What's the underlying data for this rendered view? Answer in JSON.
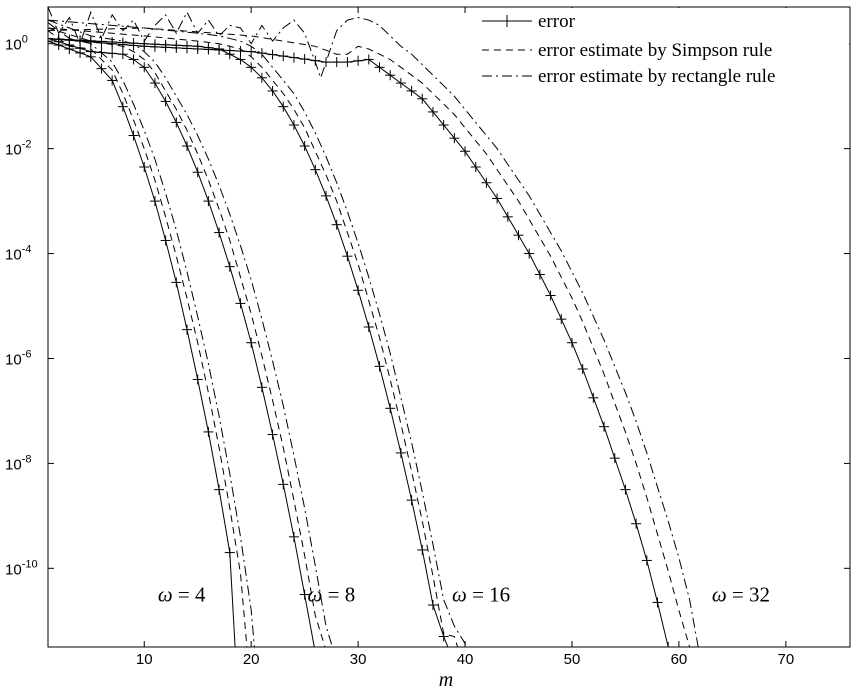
{
  "chart_data": {
    "type": "line",
    "xlabel": "m",
    "ylabel": "",
    "xlim": [
      1,
      76
    ],
    "ylim_log10": [
      -11.5,
      0.7
    ],
    "y_scale": "log",
    "grid": false,
    "legend_position": "top-right",
    "x_ticks": [
      10,
      20,
      30,
      40,
      50,
      60,
      70
    ],
    "x_tick_labels": [
      "10",
      "20",
      "30",
      "40",
      "50",
      "60",
      "70"
    ],
    "y_ticks_log10": [
      0,
      -2,
      -4,
      -6,
      -8,
      -10
    ],
    "y_tick_labels": [
      {
        "base": "10",
        "exp": "0"
      },
      {
        "base": "10",
        "exp": "-2"
      },
      {
        "base": "10",
        "exp": "-4"
      },
      {
        "base": "10",
        "exp": "-6"
      },
      {
        "base": "10",
        "exp": "-8"
      },
      {
        "base": "10",
        "exp": "-10"
      }
    ],
    "legend": [
      {
        "label": "error",
        "style": "solid-plus"
      },
      {
        "label": "error estimate by Simpson rule",
        "style": "dashed"
      },
      {
        "label": "error estimate by rectangle rule",
        "style": "dashdot"
      }
    ],
    "annotations": [
      {
        "symbol": "ω",
        "text": " = 4",
        "x": 13.5,
        "y_log10": -10.5
      },
      {
        "symbol": "ω",
        "text": " = 8",
        "x": 27.5,
        "y_log10": -10.5
      },
      {
        "symbol": "ω",
        "text": " = 16",
        "x": 41.5,
        "y_log10": -10.5
      },
      {
        "symbol": "ω",
        "text": " = 32",
        "x": 65.8,
        "y_log10": -10.5
      }
    ],
    "series": [
      {
        "omega": 4,
        "kind": "error",
        "x": [
          1,
          3,
          5,
          7,
          8,
          9,
          10,
          11,
          12,
          13,
          14,
          15,
          16,
          17,
          18,
          18.5
        ],
        "y_log10": [
          0.05,
          -0.1,
          -0.25,
          -0.7,
          -1.2,
          -1.75,
          -2.35,
          -3.0,
          -3.75,
          -4.55,
          -5.45,
          -6.4,
          -7.4,
          -8.5,
          -9.7,
          -11.5
        ]
      },
      {
        "omega": 4,
        "kind": "simpson",
        "x": [
          1,
          3,
          5,
          7,
          8,
          9,
          10,
          11,
          12,
          13,
          14,
          15,
          16,
          17,
          18,
          19,
          19.6
        ],
        "y_log10": [
          0.25,
          -0.05,
          -0.1,
          -0.5,
          -0.95,
          -1.45,
          -2.0,
          -2.6,
          -3.3,
          -4.05,
          -4.85,
          -5.7,
          -6.65,
          -7.7,
          -8.85,
          -10.1,
          -11.5
        ]
      },
      {
        "omega": 4,
        "kind": "rectangle",
        "x": [
          1,
          3,
          5,
          7,
          8,
          9,
          10,
          11,
          12,
          13,
          14,
          15,
          16,
          17,
          18,
          19,
          20,
          20.3
        ],
        "y_log10": [
          0.4,
          0.1,
          0.0,
          -0.35,
          -0.7,
          -1.15,
          -1.65,
          -2.2,
          -2.85,
          -3.55,
          -4.35,
          -5.2,
          -6.1,
          -7.1,
          -8.2,
          -9.4,
          -10.8,
          -11.5
        ]
      },
      {
        "omega": 8,
        "kind": "error",
        "x": [
          1,
          5,
          8,
          9,
          10,
          11,
          12,
          13,
          14,
          15,
          16,
          17,
          18,
          19,
          20,
          21,
          22,
          23,
          24,
          25,
          25.9
        ],
        "y_log10": [
          0.1,
          -0.15,
          -0.2,
          -0.3,
          -0.45,
          -0.75,
          -1.1,
          -1.5,
          -1.95,
          -2.45,
          -3.0,
          -3.6,
          -4.25,
          -4.95,
          -5.7,
          -6.55,
          -7.45,
          -8.4,
          -9.4,
          -10.5,
          -11.5
        ]
      },
      {
        "omega": 8,
        "kind": "simpson",
        "x": [
          1,
          5,
          8,
          9,
          10,
          11,
          12,
          13,
          14,
          15,
          16,
          17,
          18,
          19,
          20,
          21,
          22,
          23,
          24,
          25,
          26,
          26.9
        ],
        "y_log10": [
          0.3,
          0.05,
          -0.05,
          -0.15,
          -0.3,
          -0.55,
          -0.9,
          -1.25,
          -1.65,
          -2.1,
          -2.6,
          -3.15,
          -3.75,
          -4.45,
          -5.15,
          -5.95,
          -6.8,
          -7.7,
          -8.7,
          -9.75,
          -10.9,
          -11.5
        ]
      },
      {
        "omega": 8,
        "kind": "rectangle",
        "x": [
          1,
          5,
          8,
          9,
          10,
          11,
          12,
          13,
          14,
          15,
          16,
          17,
          18,
          19,
          20,
          21,
          22,
          23,
          24,
          25,
          26,
          27,
          27.6
        ],
        "y_log10": [
          0.45,
          0.15,
          0.05,
          0.0,
          -0.15,
          -0.35,
          -0.65,
          -1.0,
          -1.35,
          -1.75,
          -2.2,
          -2.7,
          -3.25,
          -3.85,
          -4.5,
          -5.25,
          -6.05,
          -6.9,
          -7.85,
          -8.85,
          -9.95,
          -11.1,
          -11.5
        ]
      },
      {
        "omega": 16,
        "kind": "error",
        "x": [
          1,
          10,
          15,
          17,
          19,
          20,
          21,
          22,
          23,
          24,
          25,
          26,
          27,
          28,
          29,
          30,
          31,
          32,
          33,
          34,
          35,
          36,
          37,
          38,
          38.4
        ],
        "y_log10": [
          0.1,
          0.0,
          -0.05,
          -0.1,
          -0.3,
          -0.45,
          -0.65,
          -0.9,
          -1.2,
          -1.55,
          -1.95,
          -2.4,
          -2.9,
          -3.45,
          -4.05,
          -4.7,
          -5.4,
          -6.15,
          -6.95,
          -7.8,
          -8.7,
          -9.65,
          -10.7,
          -11.3,
          -11.5
        ]
      },
      {
        "omega": 16,
        "kind": "simpson",
        "x": [
          1,
          10,
          15,
          17,
          19,
          20,
          21,
          22,
          23,
          24,
          25,
          26,
          27,
          28,
          29,
          30,
          31,
          32,
          33,
          34,
          35,
          36,
          37,
          38,
          39,
          39.3
        ],
        "y_log10": [
          0.3,
          0.15,
          0.05,
          0.0,
          -0.1,
          -0.25,
          -0.45,
          -0.7,
          -0.95,
          -1.25,
          -1.6,
          -2.05,
          -2.5,
          -3.0,
          -3.6,
          -4.2,
          -4.9,
          -5.6,
          -6.4,
          -7.25,
          -8.15,
          -9.1,
          -10.15,
          -11.25,
          -11.3,
          -11.5
        ]
      },
      {
        "omega": 16,
        "kind": "rectangle",
        "x": [
          1,
          10,
          15,
          17,
          19,
          20,
          21,
          22,
          23,
          24,
          25,
          26,
          27,
          28,
          29,
          30,
          31,
          32,
          33,
          34,
          35,
          36,
          37,
          38,
          39,
          40.2
        ],
        "y_log10": [
          0.45,
          0.3,
          0.2,
          0.15,
          0.05,
          -0.05,
          -0.2,
          -0.45,
          -0.7,
          -0.95,
          -1.3,
          -1.7,
          -2.15,
          -2.65,
          -3.2,
          -3.8,
          -4.45,
          -5.15,
          -5.9,
          -6.75,
          -7.6,
          -8.55,
          -9.55,
          -10.6,
          -11.1,
          -11.5
        ]
      },
      {
        "omega": 32,
        "kind": "error",
        "x": [
          1,
          10,
          20,
          27,
          29,
          31,
          32,
          33,
          34,
          35,
          36,
          37,
          38,
          39,
          40,
          41,
          42,
          43,
          44,
          45,
          46,
          47,
          48,
          49,
          50,
          51,
          52,
          53,
          54,
          55,
          56,
          57,
          58,
          59
        ],
        "y_log10": [
          0.1,
          -0.05,
          -0.15,
          -0.35,
          -0.35,
          -0.3,
          -0.45,
          -0.6,
          -0.75,
          -0.9,
          -1.05,
          -1.3,
          -1.55,
          -1.8,
          -2.05,
          -2.35,
          -2.65,
          -2.95,
          -3.3,
          -3.65,
          -4.0,
          -4.4,
          -4.8,
          -5.25,
          -5.7,
          -6.2,
          -6.75,
          -7.3,
          -7.9,
          -8.5,
          -9.15,
          -9.85,
          -10.65,
          -11.5
        ]
      },
      {
        "omega": 32,
        "kind": "simpson",
        "x": [
          1,
          10,
          20,
          26,
          28,
          29,
          30,
          31,
          32,
          33,
          34,
          35,
          36,
          37,
          38,
          39,
          40,
          41,
          42,
          43,
          44,
          45,
          46,
          47,
          48,
          49,
          50,
          51,
          52,
          53,
          54,
          55,
          56,
          57,
          58,
          59,
          60,
          61
        ],
        "y_log10": [
          0.25,
          0.3,
          0.15,
          -0.05,
          -0.2,
          -0.2,
          -0.05,
          -0.1,
          -0.2,
          -0.3,
          -0.45,
          -0.6,
          -0.75,
          -0.95,
          -1.15,
          -1.35,
          -1.6,
          -1.85,
          -2.1,
          -2.4,
          -2.7,
          -3.0,
          -3.35,
          -3.7,
          -4.05,
          -4.45,
          -4.85,
          -5.3,
          -5.8,
          -6.3,
          -6.85,
          -7.4,
          -8.0,
          -8.65,
          -9.35,
          -10.05,
          -10.8,
          -11.5
        ]
      },
      {
        "omega": 32,
        "kind": "rectangle",
        "x": [
          1,
          2,
          3,
          4,
          5,
          6,
          7,
          8,
          9,
          10,
          11,
          12,
          13,
          14,
          15,
          16,
          17,
          18,
          19,
          20,
          21,
          22,
          23,
          24,
          25,
          26,
          26.5,
          27,
          28,
          29,
          30,
          31,
          32,
          33,
          34,
          35,
          36,
          37,
          38,
          39,
          40,
          41,
          42,
          43,
          44,
          45,
          46,
          47,
          48,
          49,
          50,
          51,
          52,
          53,
          54,
          55,
          56,
          57,
          58,
          59,
          60,
          61,
          61.8
        ],
        "y_log10": [
          0.7,
          0.2,
          0.5,
          0.0,
          0.6,
          0.1,
          0.55,
          0.25,
          0.45,
          0.05,
          0.35,
          0.55,
          0.2,
          0.6,
          0.2,
          0.45,
          0.15,
          0.35,
          0.3,
          0.0,
          0.35,
          0.05,
          0.3,
          0.45,
          0.2,
          -0.35,
          -0.65,
          -0.35,
          0.25,
          0.45,
          0.5,
          0.45,
          0.35,
          0.15,
          -0.05,
          -0.2,
          -0.4,
          -0.6,
          -0.8,
          -1.0,
          -1.25,
          -1.5,
          -1.75,
          -2.0,
          -2.3,
          -2.6,
          -2.9,
          -3.25,
          -3.6,
          -3.95,
          -4.35,
          -4.75,
          -5.2,
          -5.65,
          -6.15,
          -6.65,
          -7.2,
          -7.8,
          -8.45,
          -9.1,
          -9.8,
          -10.6,
          -11.5
        ]
      }
    ]
  }
}
